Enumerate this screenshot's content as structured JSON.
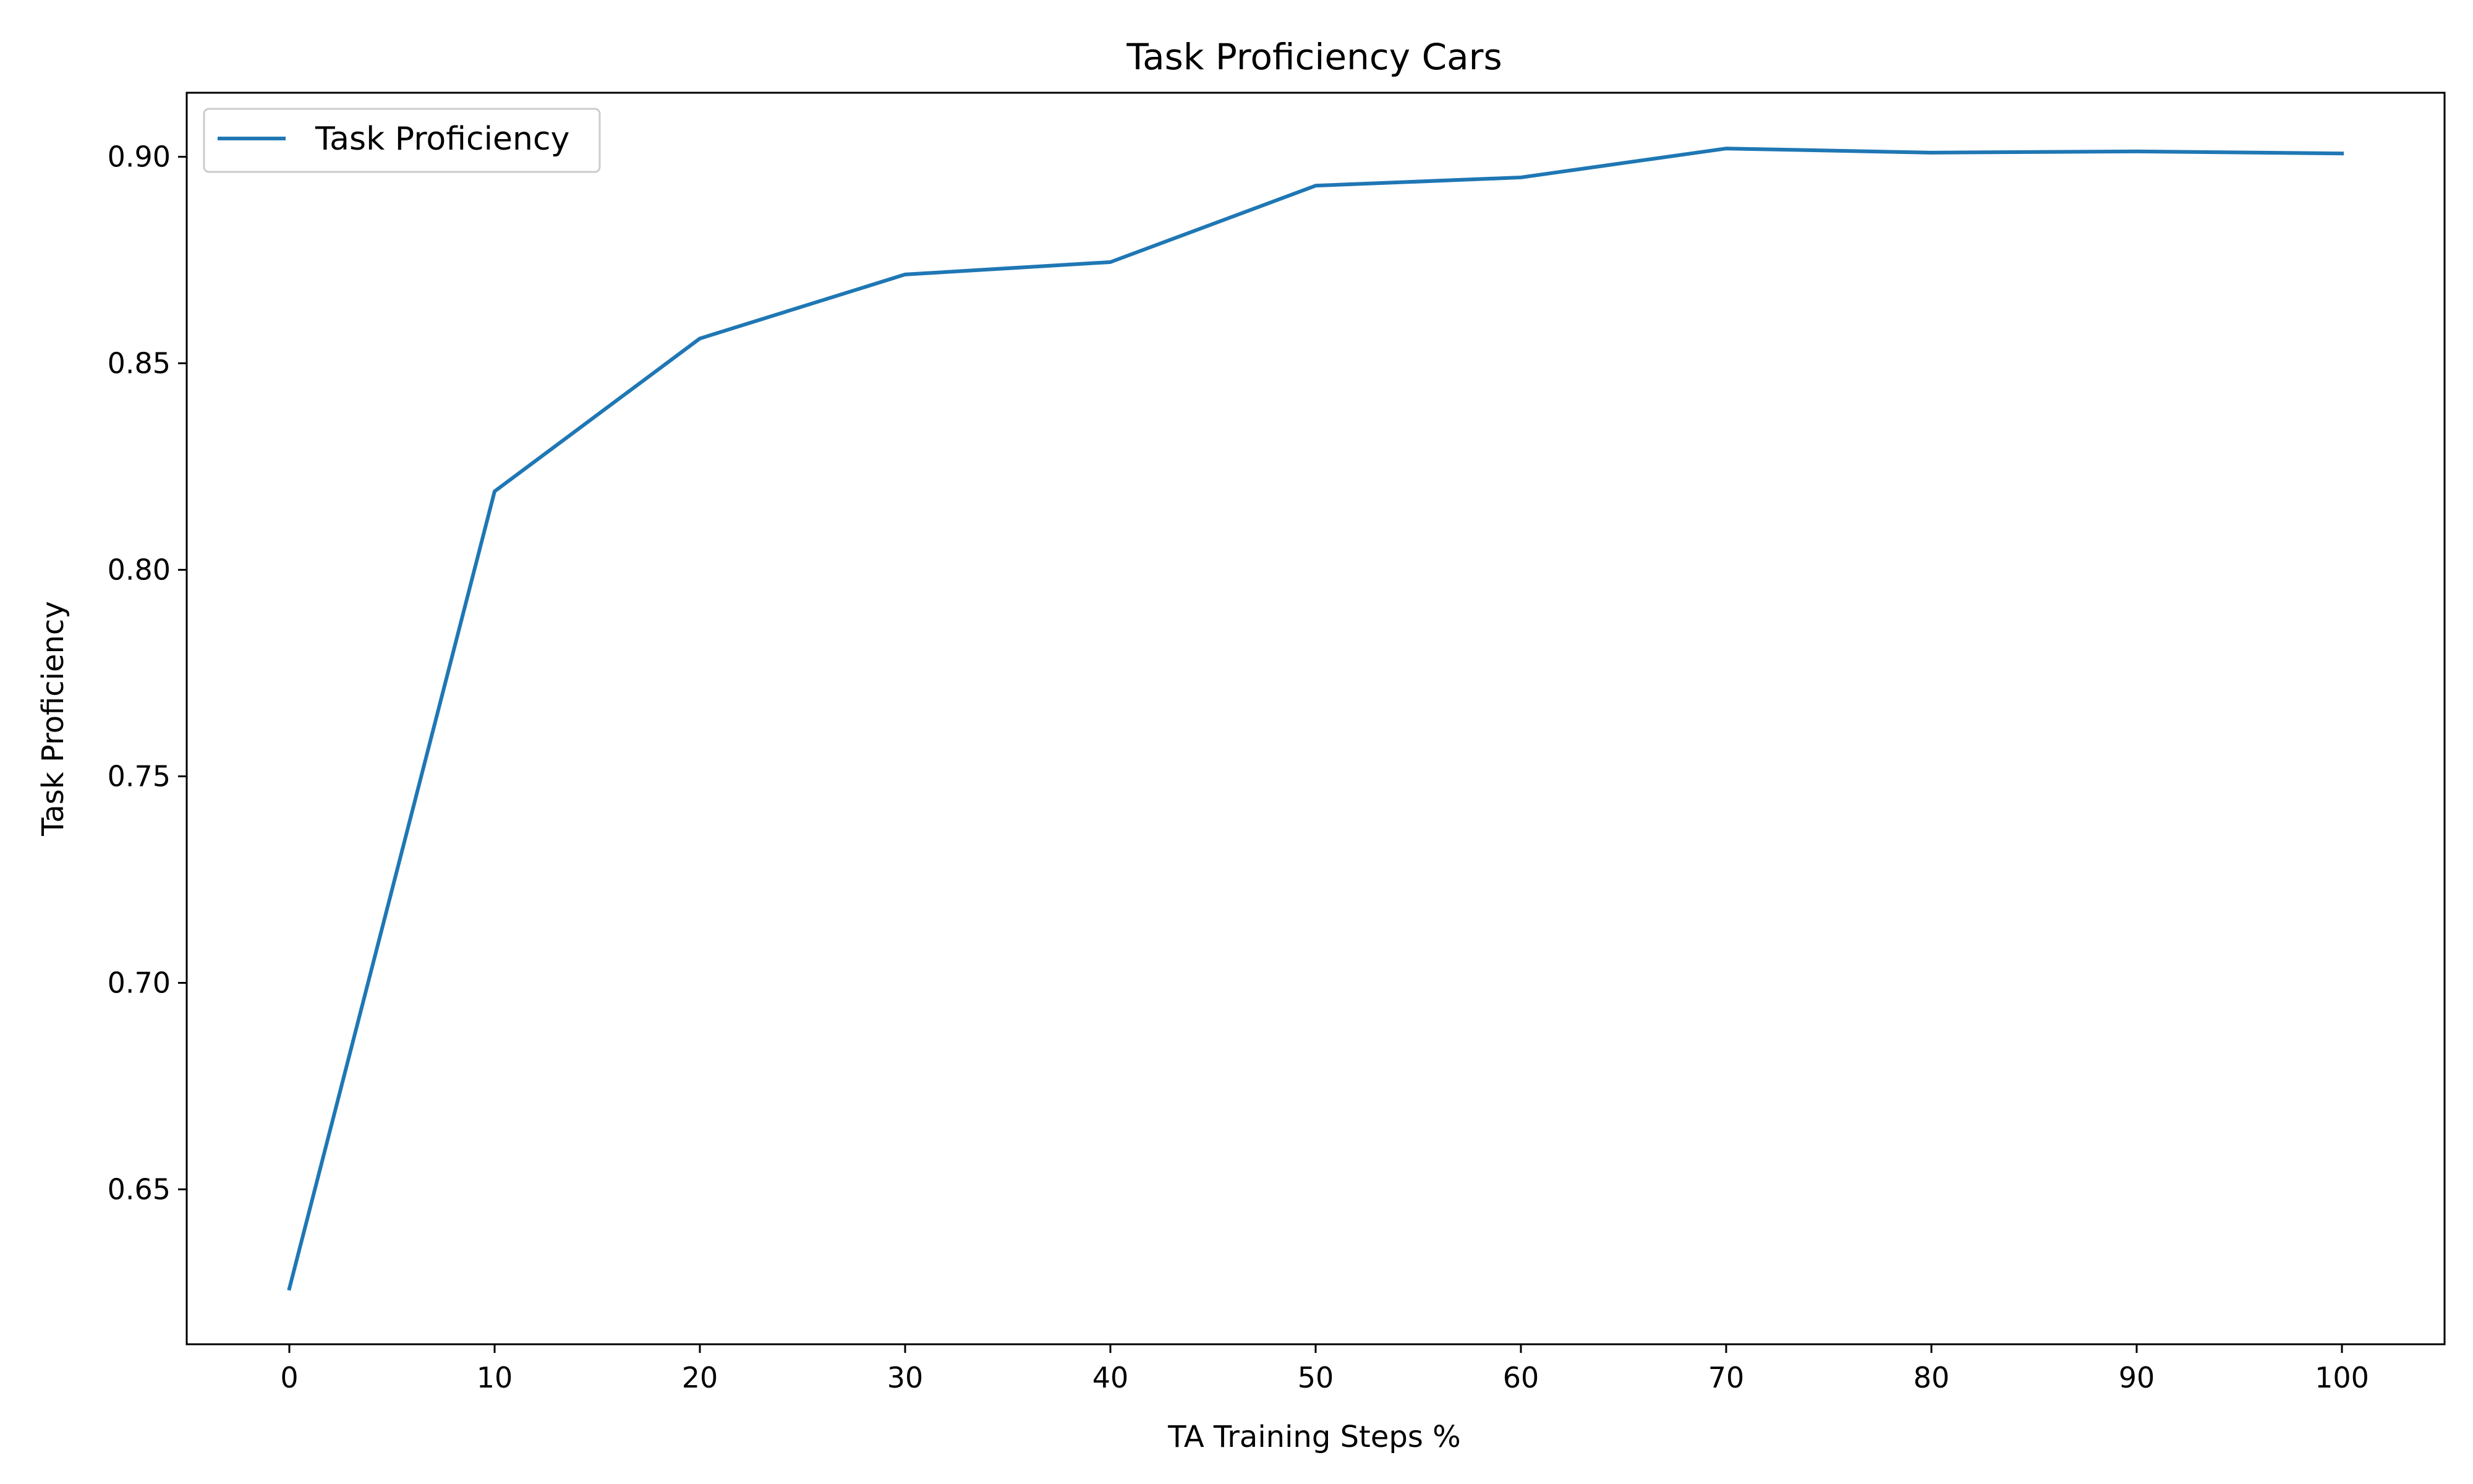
{
  "chart_data": {
    "type": "line",
    "title": "Task Proficiency Cars",
    "xlabel": "TA Training Steps %",
    "ylabel": "Task Proficiency",
    "xlim": [
      -5,
      105
    ],
    "ylim": [
      0.6125,
      0.9155
    ],
    "xticks": [
      0,
      10,
      20,
      30,
      40,
      50,
      60,
      70,
      80,
      90,
      100
    ],
    "yticks": [
      0.65,
      0.7,
      0.75,
      0.8,
      0.85,
      0.9
    ],
    "ytick_labels": [
      "0.65",
      "0.70",
      "0.75",
      "0.80",
      "0.85",
      "0.90"
    ],
    "grid": false,
    "legend_position": "top-left",
    "series": [
      {
        "name": "Task Proficiency",
        "color": "#1f77b4",
        "x": [
          0,
          10,
          20,
          30,
          40,
          50,
          60,
          70,
          80,
          90,
          100
        ],
        "y": [
          0.626,
          0.819,
          0.856,
          0.8715,
          0.8745,
          0.893,
          0.895,
          0.902,
          0.901,
          0.9013,
          0.9008
        ]
      }
    ]
  }
}
